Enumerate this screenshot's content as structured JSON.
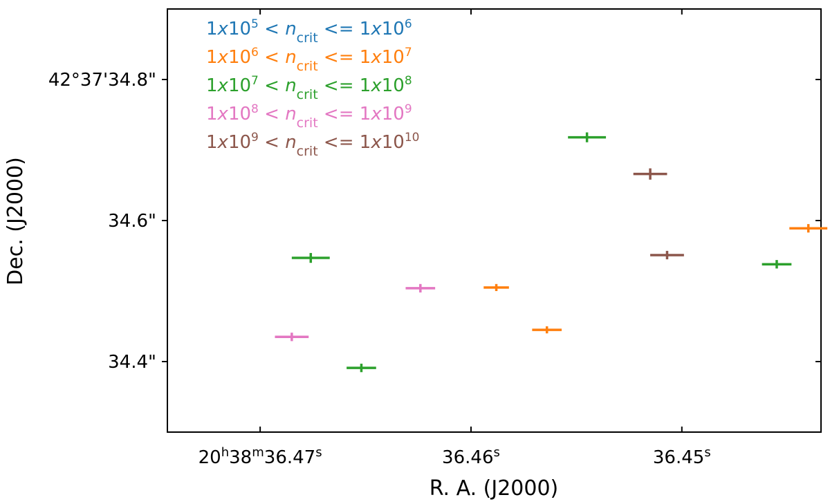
{
  "chart_data": {
    "type": "scatter",
    "title": "",
    "xlabel": "R. A. (J2000)",
    "ylabel": "Dec. (J2000)",
    "x_ticks": [
      {
        "value": 36.47,
        "label_main": "20",
        "label_sup1": "h",
        "label_mid": "38",
        "label_sup2": "m",
        "label_end": "36.47",
        "label_sup3": "s"
      },
      {
        "value": 36.46,
        "label_main": "36.46",
        "label_sup1": "s"
      },
      {
        "value": 36.45,
        "label_main": "36.45",
        "label_sup1": "s"
      }
    ],
    "y_ticks": [
      {
        "value": 34.8,
        "label": "42°37'34.8\""
      },
      {
        "value": 34.6,
        "label": "34.6\""
      },
      {
        "value": 34.4,
        "label": "34.4\""
      }
    ],
    "xlim": [
      36.4744,
      36.4434
    ],
    "ylim": [
      34.3,
      34.9
    ],
    "grid": false,
    "legend_position": "top-left",
    "legend": [
      {
        "range": "1x10^5 < n_crit <= 1x10^6",
        "lo_base": "1x10",
        "lo_exp": "5",
        "sym": "n",
        "sub": "crit",
        "hi_base": "1x10",
        "hi_exp": "6",
        "color": "#1f77b4"
      },
      {
        "range": "1x10^6 < n_crit <= 1x10^7",
        "lo_base": "1x10",
        "lo_exp": "6",
        "sym": "n",
        "sub": "crit",
        "hi_base": "1x10",
        "hi_exp": "7",
        "color": "#ff7f0e"
      },
      {
        "range": "1x10^7 < n_crit <= 1x10^8",
        "lo_base": "1x10",
        "lo_exp": "7",
        "sym": "n",
        "sub": "crit",
        "hi_base": "1x10",
        "hi_exp": "8",
        "color": "#2ca02c"
      },
      {
        "range": "1x10^8 < n_crit <= 1x10^9",
        "lo_base": "1x10",
        "lo_exp": "8",
        "sym": "n",
        "sub": "crit",
        "hi_base": "1x10",
        "hi_exp": "9",
        "color": "#e377c2"
      },
      {
        "range": "1x10^9 < n_crit <= 1x10^10",
        "lo_base": "1x10",
        "lo_exp": "9",
        "sym": "n",
        "sub": "crit",
        "hi_base": "1x10",
        "hi_exp": "10",
        "color": "#8c564b"
      }
    ],
    "series": [
      {
        "legend_index": 1,
        "color": "#ff7f0e",
        "points": [
          {
            "x": 36.4588,
            "y": 34.505,
            "xerr": 0.0006,
            "yerr": 0.005
          },
          {
            "x": 36.4564,
            "y": 34.445,
            "xerr": 0.0007,
            "yerr": 0.005
          },
          {
            "x": 36.444,
            "y": 34.589,
            "xerr": 0.0009,
            "yerr": 0.006
          }
        ]
      },
      {
        "legend_index": 2,
        "color": "#2ca02c",
        "points": [
          {
            "x": 36.4676,
            "y": 34.547,
            "xerr": 0.0009,
            "yerr": 0.007
          },
          {
            "x": 36.4652,
            "y": 34.391,
            "xerr": 0.0007,
            "yerr": 0.006
          },
          {
            "x": 36.4545,
            "y": 34.718,
            "xerr": 0.0009,
            "yerr": 0.007
          },
          {
            "x": 36.4455,
            "y": 34.538,
            "xerr": 0.0007,
            "yerr": 0.006
          }
        ]
      },
      {
        "legend_index": 3,
        "color": "#e377c2",
        "points": [
          {
            "x": 36.4685,
            "y": 34.435,
            "xerr": 0.0008,
            "yerr": 0.006
          },
          {
            "x": 36.4624,
            "y": 34.504,
            "xerr": 0.0007,
            "yerr": 0.006
          }
        ]
      },
      {
        "legend_index": 4,
        "color": "#8c564b",
        "points": [
          {
            "x": 36.4515,
            "y": 34.666,
            "xerr": 0.0008,
            "yerr": 0.008
          },
          {
            "x": 36.4507,
            "y": 34.551,
            "xerr": 0.0008,
            "yerr": 0.006
          }
        ]
      }
    ]
  }
}
